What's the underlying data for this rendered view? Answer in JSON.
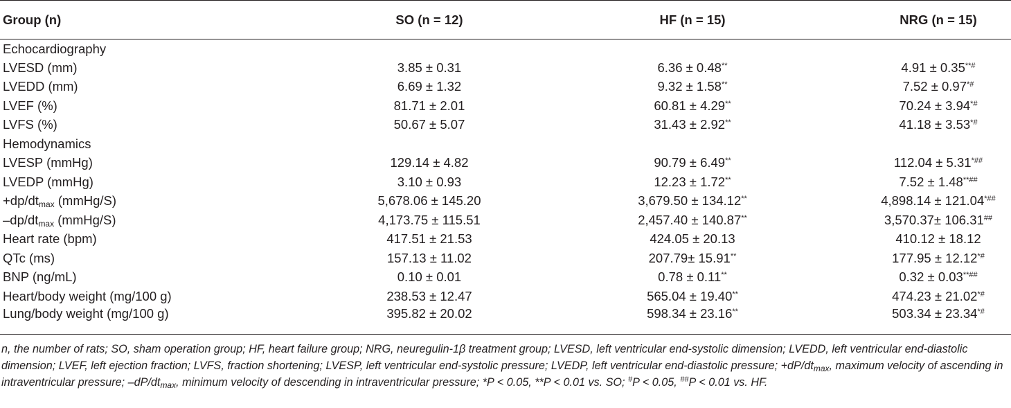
{
  "table": {
    "headers": [
      "Group (n)",
      "SO (n = 12)",
      "HF (n = 15)",
      "NRG (n = 15)"
    ],
    "rows": [
      {
        "type": "section",
        "label": "Echocardiography"
      },
      {
        "label": "LVESD (mm)",
        "so": "3.85 ± 0.31",
        "hf": "6.36 ± 0.48",
        "hf_sig": "**",
        "nrg": "4.91 ± 0.35",
        "nrg_sig": "**#"
      },
      {
        "label": "LVEDD (mm)",
        "so": "6.69 ± 1.32",
        "hf": "9.32 ± 1.58",
        "hf_sig": "**",
        "nrg": "7.52 ± 0.97",
        "nrg_sig": "*#"
      },
      {
        "label": "LVEF (%)",
        "so": "81.71 ± 2.01",
        "hf": "60.81 ± 4.29",
        "hf_sig": "**",
        "nrg": "70.24 ± 3.94",
        "nrg_sig": "*#"
      },
      {
        "label": "LVFS (%)",
        "so": "50.67 ± 5.07",
        "hf": "31.43 ± 2.92",
        "hf_sig": "**",
        "nrg": "41.18 ± 3.53",
        "nrg_sig": "*#"
      },
      {
        "type": "section",
        "label": "Hemodynamics"
      },
      {
        "label": "LVESP (mmHg)",
        "so": "129.14 ± 4.82",
        "hf": "90.79 ± 6.49",
        "hf_sig": "**",
        "nrg": "112.04 ± 5.31",
        "nrg_sig": "*##"
      },
      {
        "label": "LVEDP (mmHg)",
        "so": "3.10 ± 0.93",
        "hf": "12.23 ± 1.72",
        "hf_sig": "**",
        "nrg": "7.52 ± 1.48",
        "nrg_sig": "**##"
      },
      {
        "label_pre": "+dp/dt",
        "label_sub": "max",
        "label_post": " (mmHg/S)",
        "so": "5,678.06 ± 145.20",
        "hf": "3,679.50 ± 134.12",
        "hf_sig": "**",
        "nrg": "4,898.14 ± 121.04",
        "nrg_sig": "*##"
      },
      {
        "label_pre": "–dp/dt",
        "label_sub": "max",
        "label_post": " (mmHg/S)",
        "so": "4,173.75 ± 115.51",
        "hf": "2,457.40 ± 140.87",
        "hf_sig": "**",
        "nrg": "3,570.37± 106.31",
        "nrg_sig": "##"
      },
      {
        "label": "Heart rate (bpm)",
        "so": "417.51 ± 21.53",
        "hf": "424.05 ± 20.13",
        "hf_sig": "",
        "nrg": "410.12 ± 18.12",
        "nrg_sig": ""
      },
      {
        "label": "QTc (ms)",
        "so": "157.13 ± 11.02",
        "hf": "207.79± 15.91",
        "hf_sig": "**",
        "nrg": "177.95 ± 12.12",
        "nrg_sig": "*#"
      },
      {
        "label": "BNP (ng/mL)",
        "so": "0.10 ± 0.01",
        "hf": "0.78 ± 0.11",
        "hf_sig": "**",
        "nrg": "0.32 ± 0.03",
        "nrg_sig": "**##"
      },
      {
        "label": "Heart/body weight (mg/100 g)",
        "so": "238.53 ± 12.47",
        "hf": "565.04 ± 19.40",
        "hf_sig": "**",
        "nrg": "474.23 ± 21.02",
        "nrg_sig": "*#"
      },
      {
        "label": "Lung/body weight (mg/100 g)",
        "so": "395.82 ± 20.02",
        "hf": "598.34 ± 23.16",
        "hf_sig": "**",
        "nrg": "503.34 ± 23.34",
        "nrg_sig": "*#"
      }
    ]
  },
  "footnote": {
    "part1": "n, the number of rats; SO, sham operation group; HF, heart failure group; NRG, neuregulin-1β treatment group; LVESD, left ventricular end-systolic dimension; LVEDD, left ventricular end-diastolic dimension; LVEF, left ejection fraction; LVFS, fraction shortening; LVESP, left ventricular end-systolic pressure; LVEDP, left ventricular end-diastolic pressure; +dP/dt",
    "sub1": "max",
    "part2": ", maximum velocity of ascending in intraventricular pressure; –dP/dt",
    "sub2": "max",
    "part3": ", minimum velocity of descending in intraventricular pressure; *P < 0.05, **P < 0.01 vs. SO; ",
    "sup1": "#",
    "part4": "P < 0.05, ",
    "sup2": "##",
    "part5": "P < 0.01 vs. HF."
  }
}
